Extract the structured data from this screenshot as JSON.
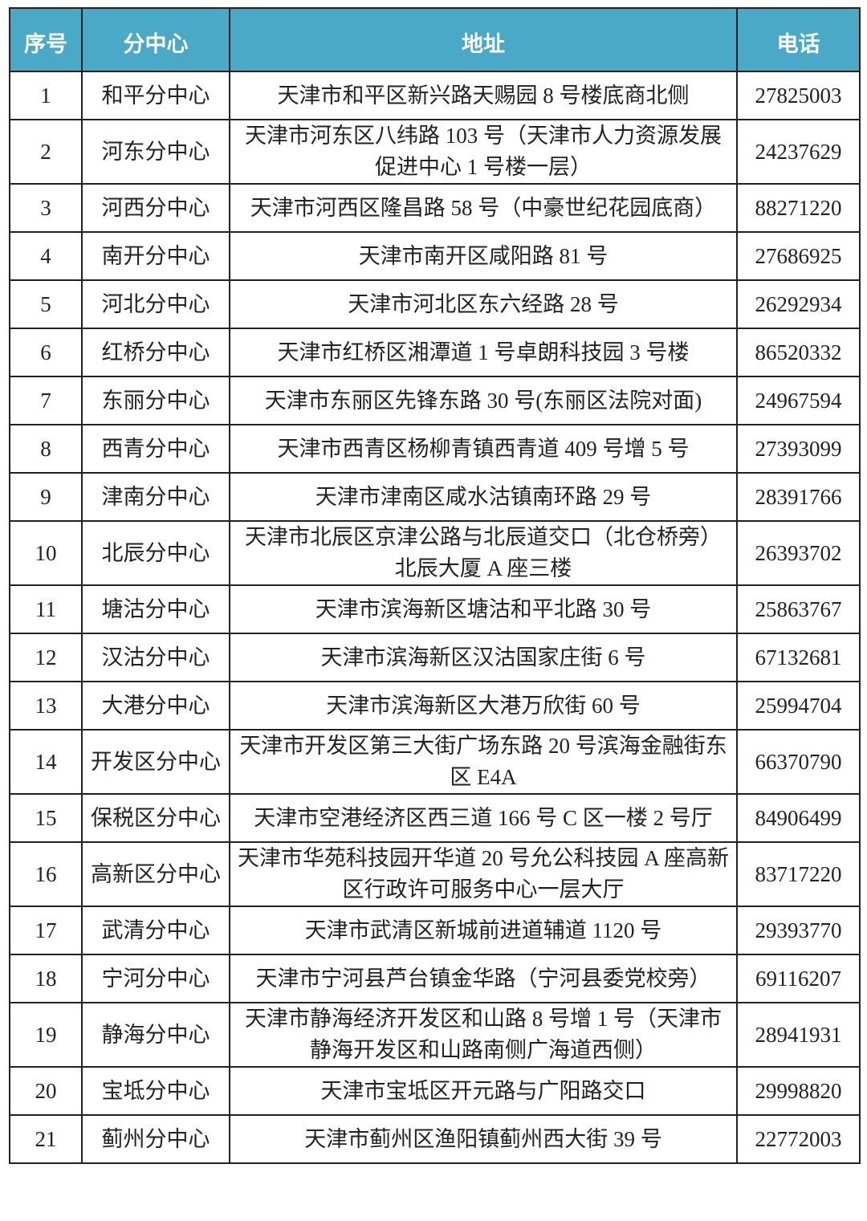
{
  "table": {
    "header_color": "#4aa9c6",
    "columns": [
      "序号",
      "分中心",
      "地址",
      "电话"
    ],
    "rows": [
      {
        "no": "1",
        "center": "和平分中心",
        "address": "天津市和平区新兴路天赐园 8 号楼底商北侧",
        "phone": "27825003"
      },
      {
        "no": "2",
        "center": "河东分中心",
        "address": "天津市河东区八纬路 103 号（天津市人力资源发展促进中心 1 号楼一层）",
        "phone": "24237629"
      },
      {
        "no": "3",
        "center": "河西分中心",
        "address": "天津市河西区隆昌路 58 号（中豪世纪花园底商）",
        "phone": "88271220"
      },
      {
        "no": "4",
        "center": "南开分中心",
        "address": "天津市南开区咸阳路 81 号",
        "phone": "27686925"
      },
      {
        "no": "5",
        "center": "河北分中心",
        "address": "天津市河北区东六经路 28 号",
        "phone": "26292934"
      },
      {
        "no": "6",
        "center": "红桥分中心",
        "address": "天津市红桥区湘潭道 1 号卓朗科技园 3 号楼",
        "phone": "86520332"
      },
      {
        "no": "7",
        "center": "东丽分中心",
        "address": "天津市东丽区先锋东路 30 号(东丽区法院对面)",
        "phone": "24967594"
      },
      {
        "no": "8",
        "center": "西青分中心",
        "address": "天津市西青区杨柳青镇西青道 409 号增 5 号",
        "phone": "27393099"
      },
      {
        "no": "9",
        "center": "津南分中心",
        "address": "天津市津南区咸水沽镇南环路 29 号",
        "phone": "28391766"
      },
      {
        "no": "10",
        "center": "北辰分中心",
        "address": "天津市北辰区京津公路与北辰道交口（北仓桥旁）北辰大厦 A 座三楼",
        "phone": "26393702"
      },
      {
        "no": "11",
        "center": "塘沽分中心",
        "address": "天津市滨海新区塘沽和平北路 30 号",
        "phone": "25863767"
      },
      {
        "no": "12",
        "center": "汉沽分中心",
        "address": "天津市滨海新区汉沽国家庄街 6 号",
        "phone": "67132681"
      },
      {
        "no": "13",
        "center": "大港分中心",
        "address": "天津市滨海新区大港万欣街 60 号",
        "phone": "25994704"
      },
      {
        "no": "14",
        "center": "开发区分中心",
        "address": "天津市开发区第三大街广场东路 20 号滨海金融街东区 E4A",
        "phone": "66370790"
      },
      {
        "no": "15",
        "center": "保税区分中心",
        "address": "天津市空港经济区西三道 166 号 C 区一楼 2 号厅",
        "phone": "84906499"
      },
      {
        "no": "16",
        "center": "高新区分中心",
        "address": "天津市华苑科技园开华道 20 号允公科技园 A 座高新区行政许可服务中心一层大厅",
        "phone": "83717220"
      },
      {
        "no": "17",
        "center": "武清分中心",
        "address": "天津市武清区新城前进道辅道 1120 号",
        "phone": "29393770"
      },
      {
        "no": "18",
        "center": "宁河分中心",
        "address": "天津市宁河县芦台镇金华路（宁河县委党校旁）",
        "phone": "69116207"
      },
      {
        "no": "19",
        "center": "静海分中心",
        "address": "天津市静海经济开发区和山路 8 号增 1 号（天津市静海开发区和山路南侧广海道西侧）",
        "phone": "28941931"
      },
      {
        "no": "20",
        "center": "宝坻分中心",
        "address": "天津市宝坻区开元路与广阳路交口",
        "phone": "29998820"
      },
      {
        "no": "21",
        "center": "蓟州分中心",
        "address": "天津市蓟州区渔阳镇蓟州西大街 39 号",
        "phone": "22772003"
      }
    ]
  }
}
